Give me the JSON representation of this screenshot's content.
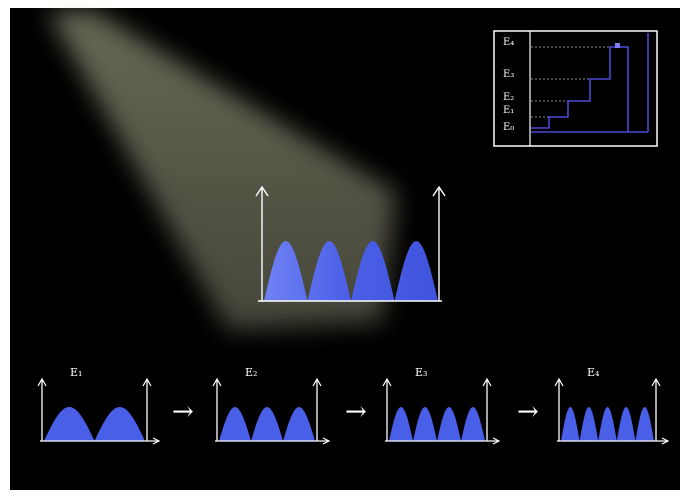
{
  "spotlight": {
    "color": "#e6e6bf"
  },
  "inset": {
    "labels": [
      "E₄",
      "E₃",
      "E₂",
      "E₁",
      "E₀"
    ],
    "level_values": [
      4,
      3,
      2,
      1,
      0
    ],
    "step_color": "#5a5aff",
    "marker_color": "#7f7fff"
  },
  "main_well": {
    "humps": 4,
    "fill": "#5c6eea"
  },
  "sequence": [
    {
      "label": "E₁",
      "humps": 2
    },
    {
      "label": "E₂",
      "humps": 3
    },
    {
      "label": "E₃",
      "humps": 4
    },
    {
      "label": "E₄",
      "humps": 5
    }
  ],
  "arrows": [
    "→",
    "→",
    "→"
  ],
  "colors": {
    "background": "#000000",
    "line": "#ffffff",
    "wave": "#4a5fe8"
  }
}
